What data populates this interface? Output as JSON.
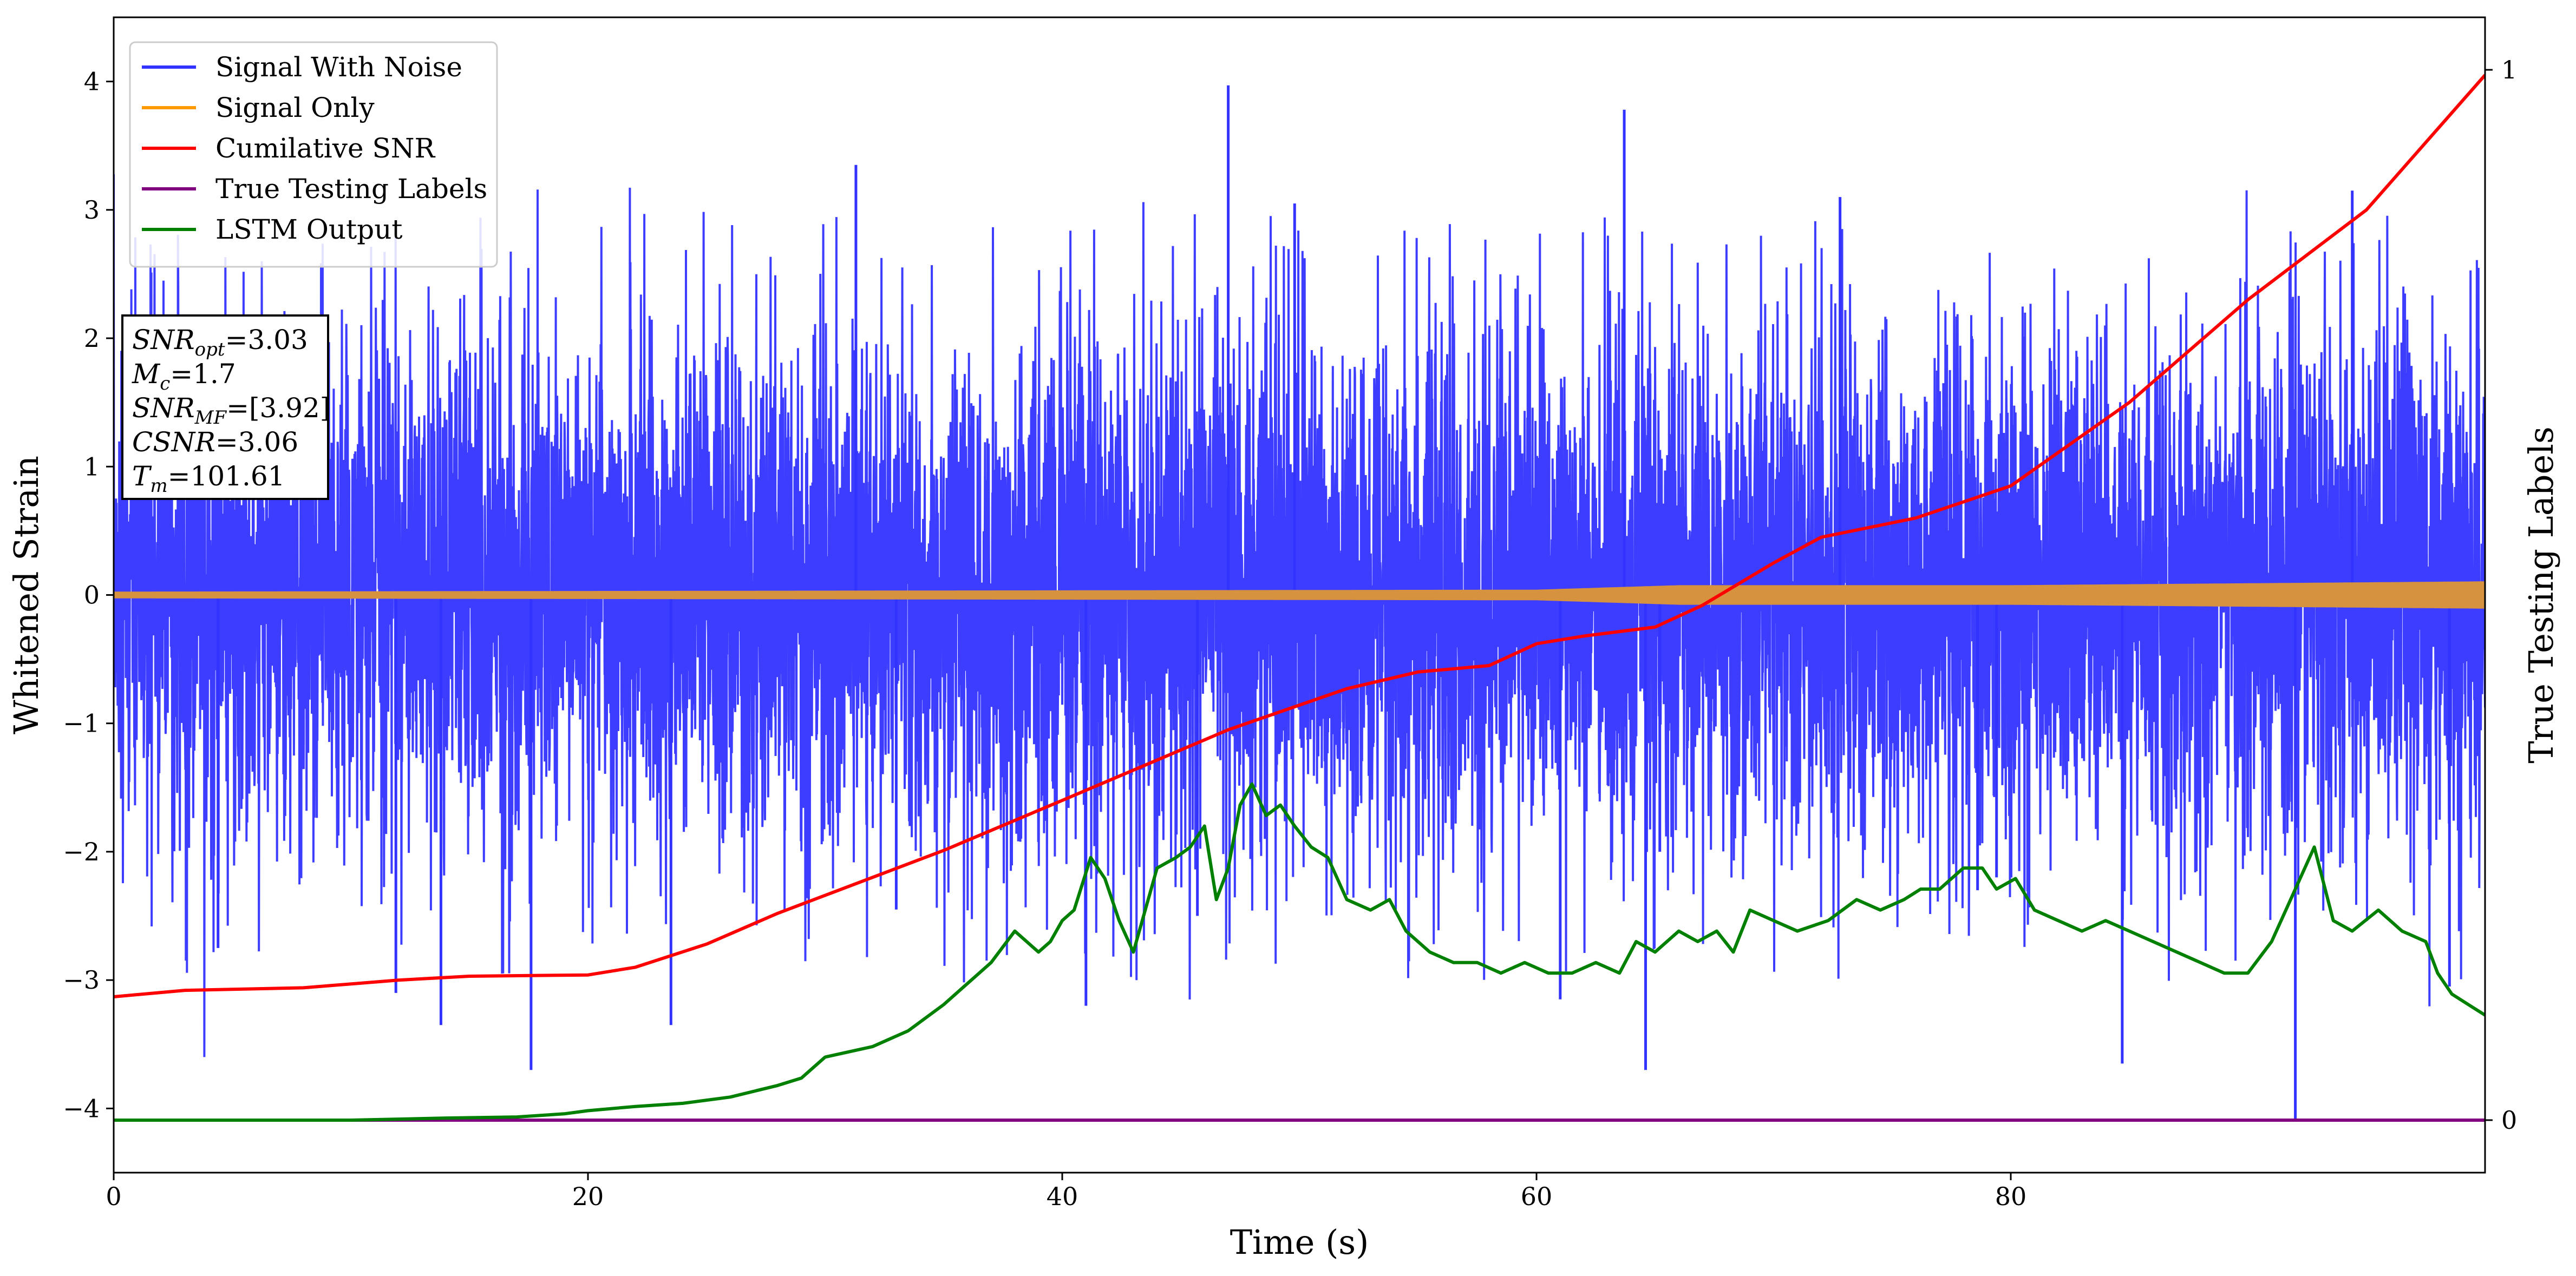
{
  "chart_data": {
    "type": "line",
    "xlabel": "Time (s)",
    "ylabel": "Whitened Strain",
    "y2label": "True Testing Labels",
    "xlim": [
      0,
      100
    ],
    "ylim": [
      -4.5,
      4.5
    ],
    "y2lim": [
      -0.05,
      1.05
    ],
    "x_ticks": [
      0,
      20,
      40,
      60,
      80
    ],
    "y_ticks": [
      -4,
      -3,
      -2,
      -1,
      0,
      1,
      2,
      3,
      4
    ],
    "y2_ticks": [
      0,
      1
    ],
    "legend_position": "top-left",
    "grid": false,
    "info_box": {
      "lines": [
        {
          "var": "SNR",
          "sub": "opt",
          "value": "=3.03"
        },
        {
          "var": "M",
          "sub": "c",
          "value": "=1.7"
        },
        {
          "var": "SNR",
          "sub": "MF",
          "value": "=[3.92]"
        },
        {
          "var": "CSNR",
          "sub": "",
          "value": "=3.06"
        },
        {
          "var": "T",
          "sub": "m",
          "value": "=101.61"
        }
      ]
    },
    "series": [
      {
        "name": "Signal With Noise",
        "color": "#3333ff",
        "axis": "left",
        "style": "noise",
        "envelope_x": [
          0,
          10,
          20,
          30,
          40,
          50,
          60,
          70,
          80,
          90,
          100
        ],
        "envelope_upper": [
          1.6,
          1.6,
          1.7,
          1.65,
          1.7,
          1.7,
          1.7,
          1.7,
          1.75,
          1.7,
          1.7
        ],
        "envelope_lower": [
          -1.6,
          -1.6,
          -1.65,
          -1.65,
          -1.7,
          -1.7,
          -1.7,
          -1.7,
          -1.7,
          -1.7,
          -1.7
        ],
        "spikes_x": [
          4.4,
          11.9,
          13.8,
          17.6,
          23.5,
          31.3,
          33.0,
          41.0,
          45.7,
          47.0,
          49.8,
          61.0,
          63.7,
          64.6,
          65.2,
          72.8,
          78.6,
          79.4,
          84.7,
          92.0,
          94.4,
          98.5
        ],
        "spikes_y": [
          -2.75,
          -3.1,
          -3.35,
          -3.7,
          -3.35,
          3.35,
          -2.45,
          -3.2,
          -2.5,
          3.97,
          3.05,
          -3.15,
          3.78,
          -3.7,
          -2.0,
          3.1,
          -2.3,
          -2.2,
          -3.65,
          -4.1,
          3.15,
          -3.05
        ]
      },
      {
        "name": "Signal Only",
        "color": "#ff9900",
        "blend_color": "#d6923f",
        "axis": "left",
        "style": "chirp",
        "x": [
          0,
          20,
          40,
          60,
          66,
          80,
          100
        ],
        "amplitude": [
          0.02,
          0.025,
          0.03,
          0.035,
          0.07,
          0.07,
          0.1
        ]
      },
      {
        "name": "Cumilative SNR",
        "color": "#ff0000",
        "axis": "left",
        "x": [
          0,
          3,
          8,
          12,
          15,
          20,
          22,
          25,
          28,
          35,
          40,
          47,
          52,
          55,
          58,
          60,
          62,
          65,
          67,
          70,
          72,
          76,
          80,
          85,
          90,
          95,
          100
        ],
        "y": [
          -3.13,
          -3.08,
          -3.06,
          -3.0,
          -2.97,
          -2.96,
          -2.9,
          -2.72,
          -2.48,
          -1.99,
          -1.6,
          -1.05,
          -0.73,
          -0.6,
          -0.55,
          -0.38,
          -0.32,
          -0.25,
          -0.08,
          0.25,
          0.45,
          0.6,
          0.85,
          1.5,
          2.3,
          3.0,
          4.05
        ]
      },
      {
        "name": "True Testing Labels",
        "color": "#800080",
        "axis": "right",
        "x": [
          0,
          100
        ],
        "y": [
          0,
          0
        ]
      },
      {
        "name": "LSTM Output",
        "color": "#008000",
        "axis": "right",
        "x": [
          0,
          10,
          14,
          17,
          19,
          20,
          22,
          24,
          26,
          28,
          29,
          30,
          32,
          33.5,
          35,
          36,
          37,
          38,
          39,
          39.5,
          40,
          40.5,
          41.2,
          41.8,
          42.4,
          43,
          44,
          44.8,
          45.4,
          46,
          46.5,
          47,
          47.5,
          48,
          48.6,
          49.2,
          49.8,
          50.5,
          51.2,
          52,
          53,
          53.8,
          54.5,
          55.5,
          56.5,
          57.5,
          58.5,
          59.5,
          60.5,
          61.5,
          62.5,
          63.5,
          64.2,
          65,
          66,
          66.8,
          67.6,
          68.3,
          69,
          70,
          71,
          72.3,
          73.5,
          74.5,
          75.5,
          76.2,
          77,
          78,
          78.8,
          79.4,
          80.2,
          81,
          82,
          83,
          84,
          85,
          86,
          87,
          88,
          89,
          90,
          91,
          92,
          92.8,
          93.6,
          94.4,
          95.5,
          96.5,
          97.5,
          98,
          98.6,
          99.3,
          100
        ],
        "y": [
          0,
          0,
          0.002,
          0.003,
          0.006,
          0.009,
          0.013,
          0.016,
          0.022,
          0.033,
          0.04,
          0.06,
          0.07,
          0.085,
          0.11,
          0.13,
          0.15,
          0.18,
          0.16,
          0.17,
          0.19,
          0.2,
          0.25,
          0.23,
          0.19,
          0.16,
          0.24,
          0.25,
          0.26,
          0.28,
          0.21,
          0.24,
          0.3,
          0.32,
          0.29,
          0.3,
          0.28,
          0.26,
          0.25,
          0.21,
          0.2,
          0.21,
          0.18,
          0.16,
          0.15,
          0.15,
          0.14,
          0.15,
          0.14,
          0.14,
          0.15,
          0.14,
          0.17,
          0.16,
          0.18,
          0.17,
          0.18,
          0.16,
          0.2,
          0.19,
          0.18,
          0.19,
          0.21,
          0.2,
          0.21,
          0.22,
          0.22,
          0.24,
          0.24,
          0.22,
          0.23,
          0.2,
          0.19,
          0.18,
          0.19,
          0.18,
          0.17,
          0.16,
          0.15,
          0.14,
          0.14,
          0.17,
          0.22,
          0.26,
          0.19,
          0.18,
          0.2,
          0.18,
          0.17,
          0.14,
          0.12,
          0.11,
          0.1
        ]
      }
    ]
  }
}
